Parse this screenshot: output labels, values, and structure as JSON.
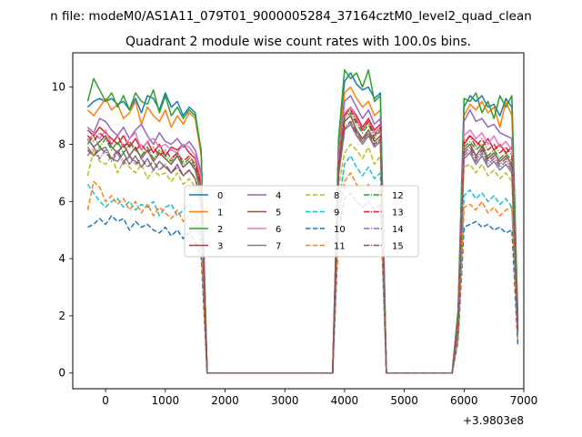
{
  "figure": {
    "suptitle": "n file: modeM0/AS1A11_079T01_9000005284_37164cztM0_level2_quad_clean",
    "offset_text": "+3.9803e8"
  },
  "chart_data": {
    "type": "line",
    "title": "Quadrant 2 module wise count rates with 100.0s bins.",
    "xlabel": "",
    "ylabel": "",
    "x_offset": 398030000,
    "xlim": [
      -550,
      7000
    ],
    "ylim": [
      -0.55,
      11.2
    ],
    "xticks": [
      0,
      1000,
      2000,
      3000,
      4000,
      5000,
      6000,
      7000
    ],
    "yticks": [
      0,
      2,
      4,
      6,
      8,
      10
    ],
    "grid": false,
    "legend": {
      "placement": "center",
      "columns": 4
    },
    "x": [
      -300,
      -200,
      -100,
      0,
      100,
      200,
      300,
      400,
      500,
      600,
      700,
      800,
      900,
      1000,
      1100,
      1200,
      1300,
      1400,
      1500,
      1600,
      1700,
      1800,
      1900,
      2000,
      2100,
      2200,
      2300,
      2400,
      2500,
      2600,
      2700,
      2800,
      2900,
      3000,
      3100,
      3200,
      3300,
      3400,
      3500,
      3600,
      3700,
      3800,
      3900,
      4000,
      4100,
      4200,
      4300,
      4400,
      4500,
      4600,
      4700,
      4800,
      4900,
      5000,
      5100,
      5200,
      5300,
      5400,
      5500,
      5600,
      5700,
      5800,
      5900,
      6000,
      6100,
      6200,
      6300,
      6400,
      6500,
      6600,
      6700,
      6800,
      6900
    ],
    "series": [
      {
        "name": "0",
        "color": "#1f77b4",
        "dash": "solid",
        "values": [
          9.3,
          9.5,
          9.6,
          9.5,
          9.6,
          9.4,
          9.5,
          9.2,
          9.6,
          9.1,
          9.7,
          9.6,
          9.2,
          9.8,
          9.3,
          9.5,
          9.0,
          9.3,
          9.1,
          7.7,
          0,
          0,
          0,
          0,
          0,
          0,
          0,
          0,
          0,
          0,
          0,
          0,
          0,
          0,
          0,
          0,
          0,
          0,
          0,
          0,
          0,
          0,
          8.0,
          10.2,
          10.5,
          10.1,
          9.9,
          10.0,
          9.6,
          9.8,
          0,
          0,
          0,
          0,
          0,
          0,
          0,
          0,
          0,
          0,
          0,
          0,
          2.1,
          9.3,
          9.7,
          9.5,
          9.7,
          9.3,
          9.4,
          9.0,
          9.6,
          9.3,
          1.9
        ]
      },
      {
        "name": "1",
        "color": "#ff7f0e",
        "dash": "solid",
        "values": [
          9.2,
          9.0,
          9.3,
          9.6,
          9.2,
          9.4,
          8.9,
          9.1,
          9.5,
          8.7,
          9.3,
          9.0,
          8.8,
          9.2,
          8.6,
          9.0,
          8.7,
          9.1,
          8.9,
          7.6,
          0,
          0,
          0,
          0,
          0,
          0,
          0,
          0,
          0,
          0,
          0,
          0,
          0,
          0,
          0,
          0,
          0,
          0,
          0,
          0,
          0,
          0,
          7.8,
          9.8,
          10.0,
          9.6,
          9.3,
          9.5,
          9.0,
          9.2,
          0,
          0,
          0,
          0,
          0,
          0,
          0,
          0,
          0,
          0,
          0,
          0,
          2.0,
          9.0,
          9.4,
          9.2,
          9.5,
          9.1,
          9.3,
          8.6,
          9.5,
          9.0,
          1.8
        ]
      },
      {
        "name": "2",
        "color": "#2ca02c",
        "dash": "solid",
        "values": [
          9.5,
          10.3,
          9.9,
          9.5,
          9.8,
          9.3,
          9.7,
          9.2,
          9.8,
          9.5,
          9.4,
          9.9,
          9.1,
          9.7,
          9.0,
          9.3,
          8.9,
          9.2,
          9.0,
          7.8,
          0,
          0,
          0,
          0,
          0,
          0,
          0,
          0,
          0,
          0,
          0,
          0,
          0,
          0,
          0,
          0,
          0,
          0,
          0,
          0,
          0,
          0,
          8.2,
          10.6,
          10.3,
          10.5,
          10.0,
          10.6,
          9.5,
          9.7,
          0,
          0,
          0,
          0,
          0,
          0,
          0,
          0,
          0,
          0,
          0,
          0,
          2.2,
          9.6,
          9.5,
          9.8,
          9.1,
          9.5,
          8.9,
          9.7,
          9.3,
          9.7,
          2.0
        ]
      },
      {
        "name": "3",
        "color": "#d62728",
        "dash": "solid",
        "values": [
          8.5,
          8.3,
          8.6,
          8.4,
          8.2,
          8.0,
          8.3,
          7.9,
          8.2,
          7.8,
          8.1,
          7.7,
          8.0,
          7.6,
          7.9,
          7.8,
          8.0,
          7.7,
          7.5,
          6.6,
          0,
          0,
          0,
          0,
          0,
          0,
          0,
          0,
          0,
          0,
          0,
          0,
          0,
          0,
          0,
          0,
          0,
          0,
          0,
          0,
          0,
          0,
          7.3,
          9.0,
          9.3,
          9.0,
          8.6,
          8.9,
          8.5,
          8.7,
          0,
          0,
          0,
          0,
          0,
          0,
          0,
          0,
          0,
          0,
          0,
          0,
          1.8,
          8.0,
          8.3,
          8.1,
          7.9,
          8.2,
          7.8,
          8.0,
          7.7,
          7.9,
          1.6
        ]
      },
      {
        "name": "4",
        "color": "#9467bd",
        "dash": "solid",
        "values": [
          8.6,
          8.4,
          8.9,
          8.8,
          8.5,
          8.3,
          8.6,
          8.2,
          8.5,
          8.7,
          8.3,
          8.0,
          8.4,
          8.1,
          8.0,
          8.2,
          7.9,
          8.1,
          7.8,
          7.0,
          0,
          0,
          0,
          0,
          0,
          0,
          0,
          0,
          0,
          0,
          0,
          0,
          0,
          0,
          0,
          0,
          0,
          0,
          0,
          0,
          0,
          0,
          7.6,
          9.5,
          9.7,
          9.3,
          8.9,
          9.2,
          8.7,
          8.9,
          0,
          0,
          0,
          0,
          0,
          0,
          0,
          0,
          0,
          0,
          0,
          0,
          1.9,
          8.8,
          9.2,
          8.8,
          8.9,
          8.6,
          8.7,
          8.4,
          8.3,
          8.2,
          1.7
        ]
      },
      {
        "name": "5",
        "color": "#8c564b",
        "dash": "solid",
        "values": [
          8.2,
          7.9,
          8.1,
          8.3,
          7.9,
          7.7,
          8.0,
          7.6,
          7.9,
          7.5,
          7.8,
          7.4,
          7.7,
          7.5,
          7.3,
          7.6,
          7.2,
          7.4,
          7.1,
          6.3,
          0,
          0,
          0,
          0,
          0,
          0,
          0,
          0,
          0,
          0,
          0,
          0,
          0,
          0,
          0,
          0,
          0,
          0,
          0,
          0,
          0,
          0,
          7.1,
          8.8,
          9.0,
          8.5,
          8.2,
          8.5,
          8.1,
          8.3,
          0,
          0,
          0,
          0,
          0,
          0,
          0,
          0,
          0,
          0,
          0,
          0,
          1.7,
          7.8,
          8.0,
          7.6,
          7.9,
          7.5,
          7.7,
          7.4,
          7.6,
          7.3,
          1.5
        ]
      },
      {
        "name": "6",
        "color": "#e377c2",
        "dash": "solid",
        "values": [
          8.1,
          8.4,
          8.2,
          8.5,
          8.0,
          8.3,
          7.9,
          8.2,
          8.4,
          7.8,
          8.1,
          8.2,
          7.9,
          8.0,
          7.8,
          7.7,
          8.0,
          7.9,
          7.6,
          6.8,
          0,
          0,
          0,
          0,
          0,
          0,
          0,
          0,
          0,
          0,
          0,
          0,
          0,
          0,
          0,
          0,
          0,
          0,
          0,
          0,
          0,
          0,
          7.4,
          9.1,
          9.3,
          8.9,
          8.5,
          8.8,
          8.4,
          8.6,
          0,
          0,
          0,
          0,
          0,
          0,
          0,
          0,
          0,
          0,
          0,
          0,
          1.8,
          8.3,
          8.5,
          8.2,
          8.4,
          8.0,
          8.3,
          7.9,
          8.1,
          7.8,
          1.6
        ]
      },
      {
        "name": "7",
        "color": "#7f7f7f",
        "dash": "solid",
        "values": [
          7.9,
          7.6,
          7.8,
          7.9,
          7.5,
          7.4,
          7.7,
          7.3,
          7.6,
          7.2,
          7.5,
          7.1,
          7.4,
          7.2,
          7.0,
          7.3,
          6.9,
          7.1,
          6.8,
          6.0,
          0,
          0,
          0,
          0,
          0,
          0,
          0,
          0,
          0,
          0,
          0,
          0,
          0,
          0,
          0,
          0,
          0,
          0,
          0,
          0,
          0,
          0,
          6.9,
          8.5,
          8.7,
          8.3,
          8.0,
          8.3,
          7.9,
          8.1,
          0,
          0,
          0,
          0,
          0,
          0,
          0,
          0,
          0,
          0,
          0,
          0,
          1.6,
          7.5,
          7.7,
          7.3,
          7.6,
          7.2,
          7.4,
          7.1,
          7.3,
          7.0,
          1.4
        ]
      },
      {
        "name": "8",
        "color": "#bcbd22",
        "dash": "dashed",
        "values": [
          6.9,
          7.8,
          7.4,
          7.3,
          7.6,
          7.0,
          7.4,
          7.2,
          7.0,
          7.3,
          6.8,
          7.1,
          6.9,
          7.0,
          6.7,
          7.0,
          6.6,
          6.8,
          6.5,
          5.8,
          0,
          0,
          0,
          0,
          0,
          0,
          0,
          0,
          0,
          0,
          0,
          0,
          0,
          0,
          0,
          0,
          0,
          0,
          0,
          0,
          0,
          0,
          6.5,
          7.7,
          8.0,
          7.8,
          7.5,
          7.9,
          7.3,
          7.6,
          0,
          0,
          0,
          0,
          0,
          0,
          0,
          0,
          0,
          0,
          0,
          0,
          1.5,
          7.2,
          7.3,
          7.0,
          7.3,
          6.9,
          7.1,
          6.8,
          7.0,
          6.7,
          1.3
        ]
      },
      {
        "name": "9",
        "color": "#17becf",
        "dash": "dashed",
        "values": [
          6.6,
          6.3,
          6.0,
          5.8,
          6.0,
          6.1,
          5.8,
          6.0,
          5.7,
          5.9,
          5.8,
          6.0,
          5.5,
          5.8,
          5.9,
          5.5,
          5.7,
          5.9,
          5.6,
          4.8,
          0,
          0,
          0,
          0,
          0,
          0,
          0,
          0,
          0,
          0,
          0,
          0,
          0,
          0,
          0,
          0,
          0,
          0,
          0,
          0,
          0,
          0,
          5.9,
          7.3,
          7.6,
          7.2,
          6.9,
          7.2,
          6.8,
          7.0,
          0,
          0,
          0,
          0,
          0,
          0,
          0,
          0,
          0,
          0,
          0,
          0,
          1.3,
          6.2,
          6.4,
          6.1,
          6.3,
          6.0,
          6.2,
          5.9,
          6.1,
          5.8,
          1.1
        ]
      },
      {
        "name": "10",
        "color": "#1f77b4",
        "dash": "dashed",
        "values": [
          5.1,
          5.2,
          5.4,
          5.2,
          5.5,
          5.3,
          5.4,
          5.0,
          5.3,
          5.1,
          5.2,
          5.0,
          4.9,
          5.1,
          4.8,
          5.0,
          4.7,
          4.9,
          4.6,
          4.1,
          0,
          0,
          0,
          0,
          0,
          0,
          0,
          0,
          0,
          0,
          0,
          0,
          0,
          0,
          0,
          0,
          0,
          0,
          0,
          0,
          0,
          0,
          5.0,
          6.1,
          6.3,
          6.0,
          5.8,
          6.0,
          5.7,
          5.9,
          0,
          0,
          0,
          0,
          0,
          0,
          0,
          0,
          0,
          0,
          0,
          0,
          1.1,
          5.1,
          5.2,
          5.3,
          5.1,
          5.2,
          5.0,
          5.1,
          4.9,
          5.0,
          1.0
        ]
      },
      {
        "name": "11",
        "color": "#ff7f0e",
        "dash": "dashed",
        "values": [
          5.7,
          6.7,
          6.5,
          6.0,
          6.2,
          5.9,
          6.1,
          5.7,
          6.0,
          5.6,
          5.9,
          5.5,
          5.8,
          5.6,
          5.4,
          5.7,
          5.3,
          5.5,
          5.2,
          4.5,
          0,
          0,
          0,
          0,
          0,
          0,
          0,
          0,
          0,
          0,
          0,
          0,
          0,
          0,
          0,
          0,
          0,
          0,
          0,
          0,
          0,
          0,
          5.5,
          6.7,
          7.0,
          6.6,
          6.4,
          6.6,
          6.2,
          6.4,
          0,
          0,
          0,
          0,
          0,
          0,
          0,
          0,
          0,
          0,
          0,
          0,
          1.2,
          5.8,
          5.9,
          5.7,
          6.0,
          5.6,
          5.8,
          5.5,
          5.7,
          5.8,
          1.2
        ]
      },
      {
        "name": "12",
        "color": "#2ca02c",
        "dash": "dashdot",
        "values": [
          8.0,
          8.3,
          7.9,
          8.2,
          7.8,
          8.1,
          7.7,
          8.0,
          7.8,
          7.6,
          7.9,
          7.5,
          7.8,
          7.6,
          7.4,
          7.7,
          7.3,
          7.5,
          7.2,
          6.4,
          0,
          0,
          0,
          0,
          0,
          0,
          0,
          0,
          0,
          0,
          0,
          0,
          0,
          0,
          0,
          0,
          0,
          0,
          0,
          0,
          0,
          0,
          7.2,
          8.9,
          9.1,
          8.7,
          8.4,
          8.7,
          8.2,
          8.5,
          0,
          0,
          0,
          0,
          0,
          0,
          0,
          0,
          0,
          0,
          0,
          0,
          1.7,
          7.9,
          8.1,
          7.8,
          8.0,
          7.6,
          7.8,
          7.5,
          7.7,
          7.4,
          1.5
        ]
      },
      {
        "name": "13",
        "color": "#d62728",
        "dash": "dashdot",
        "values": [
          8.3,
          8.1,
          8.4,
          8.2,
          8.0,
          8.3,
          7.9,
          8.1,
          7.8,
          8.0,
          7.7,
          7.9,
          7.6,
          7.8,
          7.5,
          7.7,
          7.4,
          7.6,
          7.3,
          6.5,
          0,
          0,
          0,
          0,
          0,
          0,
          0,
          0,
          0,
          0,
          0,
          0,
          0,
          0,
          0,
          0,
          0,
          0,
          0,
          0,
          0,
          0,
          7.3,
          9.0,
          9.2,
          8.8,
          8.5,
          8.8,
          8.3,
          8.6,
          0,
          0,
          0,
          0,
          0,
          0,
          0,
          0,
          0,
          0,
          0,
          0,
          1.8,
          8.1,
          8.3,
          7.9,
          8.2,
          7.8,
          8.0,
          7.7,
          7.9,
          7.6,
          1.6
        ]
      },
      {
        "name": "14",
        "color": "#9467bd",
        "dash": "dashdot",
        "values": [
          7.6,
          7.9,
          7.5,
          7.8,
          7.4,
          7.7,
          7.3,
          7.6,
          7.4,
          7.2,
          7.5,
          7.1,
          7.4,
          7.2,
          7.0,
          7.3,
          6.9,
          7.1,
          6.8,
          6.1,
          0,
          0,
          0,
          0,
          0,
          0,
          0,
          0,
          0,
          0,
          0,
          0,
          0,
          0,
          0,
          0,
          0,
          0,
          0,
          0,
          0,
          0,
          6.9,
          8.5,
          8.8,
          8.4,
          8.1,
          8.4,
          7.9,
          8.2,
          0,
          0,
          0,
          0,
          0,
          0,
          0,
          0,
          0,
          0,
          0,
          0,
          1.6,
          7.6,
          7.8,
          7.4,
          7.7,
          7.3,
          7.5,
          7.2,
          7.4,
          7.1,
          1.4
        ]
      },
      {
        "name": "15",
        "color": "#8c564b",
        "dash": "dashdot",
        "values": [
          7.8,
          7.6,
          7.9,
          7.7,
          7.5,
          7.8,
          7.4,
          7.6,
          7.3,
          7.5,
          7.2,
          7.4,
          7.1,
          7.3,
          7.0,
          7.2,
          6.9,
          7.1,
          6.8,
          6.0,
          0,
          0,
          0,
          0,
          0,
          0,
          0,
          0,
          0,
          0,
          0,
          0,
          0,
          0,
          0,
          0,
          0,
          0,
          0,
          0,
          0,
          0,
          7.0,
          8.6,
          8.8,
          8.4,
          8.1,
          8.4,
          8.0,
          8.2,
          0,
          0,
          0,
          0,
          0,
          0,
          0,
          0,
          0,
          0,
          0,
          0,
          1.6,
          7.7,
          7.9,
          7.5,
          7.8,
          7.4,
          7.6,
          7.3,
          7.5,
          7.2,
          1.4
        ]
      }
    ]
  }
}
